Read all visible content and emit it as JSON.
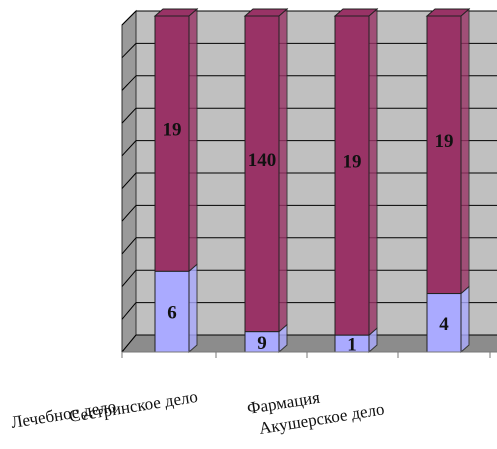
{
  "chart_data": {
    "type": "bar",
    "stacked": true,
    "orientation": "vertical",
    "categories": [
      "Лечебное дело",
      "Сестринское дело",
      "Фармация",
      "Акушерское дело"
    ],
    "series": [
      {
        "values": [
          6,
          9,
          1,
          4
        ],
        "labels": [
          "6",
          "9",
          "1",
          "4"
        ],
        "color": "#aaaaff"
      },
      {
        "values": [
          19,
          140,
          19,
          19
        ],
        "labels": [
          "19",
          "140",
          "19",
          "19"
        ],
        "color": "#993366"
      }
    ],
    "grid": true,
    "legend": "none",
    "title": "",
    "xlabel": "",
    "ylabel": ""
  },
  "colors": {
    "wall": "#c0c0c0",
    "gridline": "#000000",
    "bar_low": "#aaaaff",
    "bar_high": "#993366"
  }
}
